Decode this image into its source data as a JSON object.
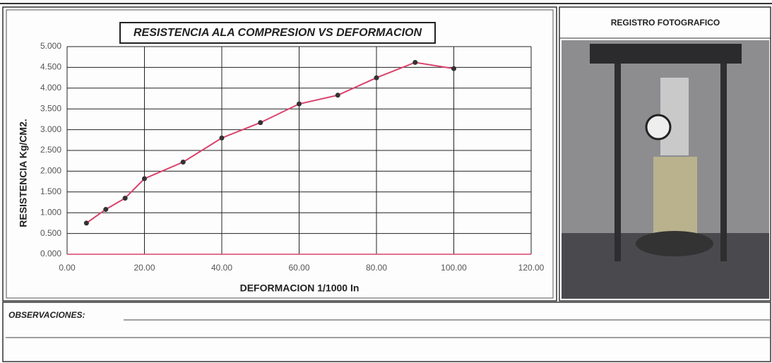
{
  "chart_data": {
    "type": "line",
    "title": "RESISTENCIA ALA COMPRESION VS DEFORMACION",
    "x_label": "DEFORMACION 1/1000 In",
    "y_label": "RESISTENCIA Kg/CM2.",
    "x": [
      5,
      10,
      15,
      20,
      30,
      40,
      50,
      60,
      70,
      80,
      90,
      100
    ],
    "values": [
      0.75,
      1.08,
      1.35,
      1.82,
      2.22,
      2.8,
      3.17,
      3.62,
      3.83,
      4.25,
      4.62,
      4.47
    ],
    "color": "#d9416b",
    "marker_color": "#333333",
    "xlim": [
      0,
      120
    ],
    "xticks": [
      {
        "value": 0,
        "label": "0.00"
      },
      {
        "value": 20,
        "label": "20.00"
      },
      {
        "value": 40,
        "label": "40.00"
      },
      {
        "value": 60,
        "label": "60.00"
      },
      {
        "value": 80,
        "label": "80.00"
      },
      {
        "value": 100,
        "label": "100.00"
      },
      {
        "value": 120,
        "label": "120.00"
      }
    ],
    "ylim": [
      0,
      5
    ],
    "yticks": [
      {
        "value": 0,
        "label": "0.000"
      },
      {
        "value": 0.5,
        "label": "0.500"
      },
      {
        "value": 1,
        "label": "1.000"
      },
      {
        "value": 1.5,
        "label": "1.500"
      },
      {
        "value": 2,
        "label": "2.000"
      },
      {
        "value": 2.5,
        "label": "2.500"
      },
      {
        "value": 3,
        "label": "3.000"
      },
      {
        "value": 3.5,
        "label": "3.500"
      },
      {
        "value": 4,
        "label": "4.000"
      },
      {
        "value": 4.5,
        "label": "4.500"
      },
      {
        "value": 5,
        "label": "5.000"
      }
    ],
    "grid": true
  },
  "photo_title": "REGISTRO FOTOGRAFICO",
  "observations_label": "OBSERVACIONES:"
}
